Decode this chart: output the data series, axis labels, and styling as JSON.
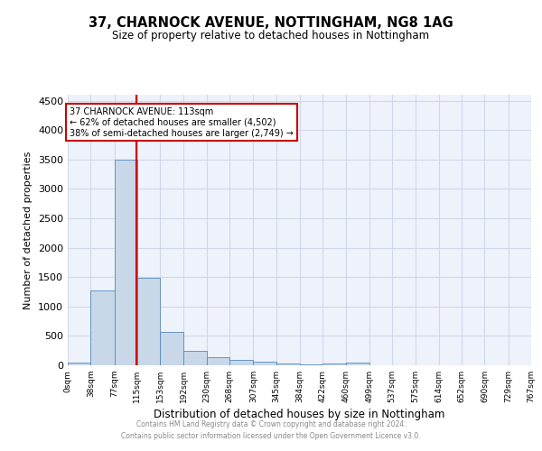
{
  "title": "37, CHARNOCK AVENUE, NOTTINGHAM, NG8 1AG",
  "subtitle": "Size of property relative to detached houses in Nottingham",
  "xlabel": "Distribution of detached houses by size in Nottingham",
  "ylabel": "Number of detached properties",
  "property_size": 113,
  "property_label": "37 CHARNOCK AVENUE: 113sqm",
  "annotation_line1": "← 62% of detached houses are smaller (4,502)",
  "annotation_line2": "38% of semi-detached houses are larger (2,749) →",
  "bin_edges": [
    0,
    38,
    77,
    115,
    153,
    192,
    230,
    268,
    307,
    345,
    384,
    422,
    460,
    499,
    537,
    575,
    614,
    652,
    690,
    729,
    767
  ],
  "bar_heights": [
    50,
    1270,
    3500,
    1480,
    575,
    250,
    135,
    90,
    55,
    30,
    20,
    35,
    45,
    0,
    0,
    0,
    0,
    0,
    0,
    0
  ],
  "bar_color": "#c8d8e8",
  "bar_edge_color": "#5588bb",
  "grid_color": "#d0d8e8",
  "bg_color": "#eef2fa",
  "red_line_color": "#cc0000",
  "annotation_box_color": "#cc0000",
  "ylim": [
    0,
    4600
  ],
  "yticks": [
    0,
    500,
    1000,
    1500,
    2000,
    2500,
    3000,
    3500,
    4000,
    4500
  ],
  "footer_line1": "Contains HM Land Registry data © Crown copyright and database right 2024.",
  "footer_line2": "Contains public sector information licensed under the Open Government Licence v3.0."
}
